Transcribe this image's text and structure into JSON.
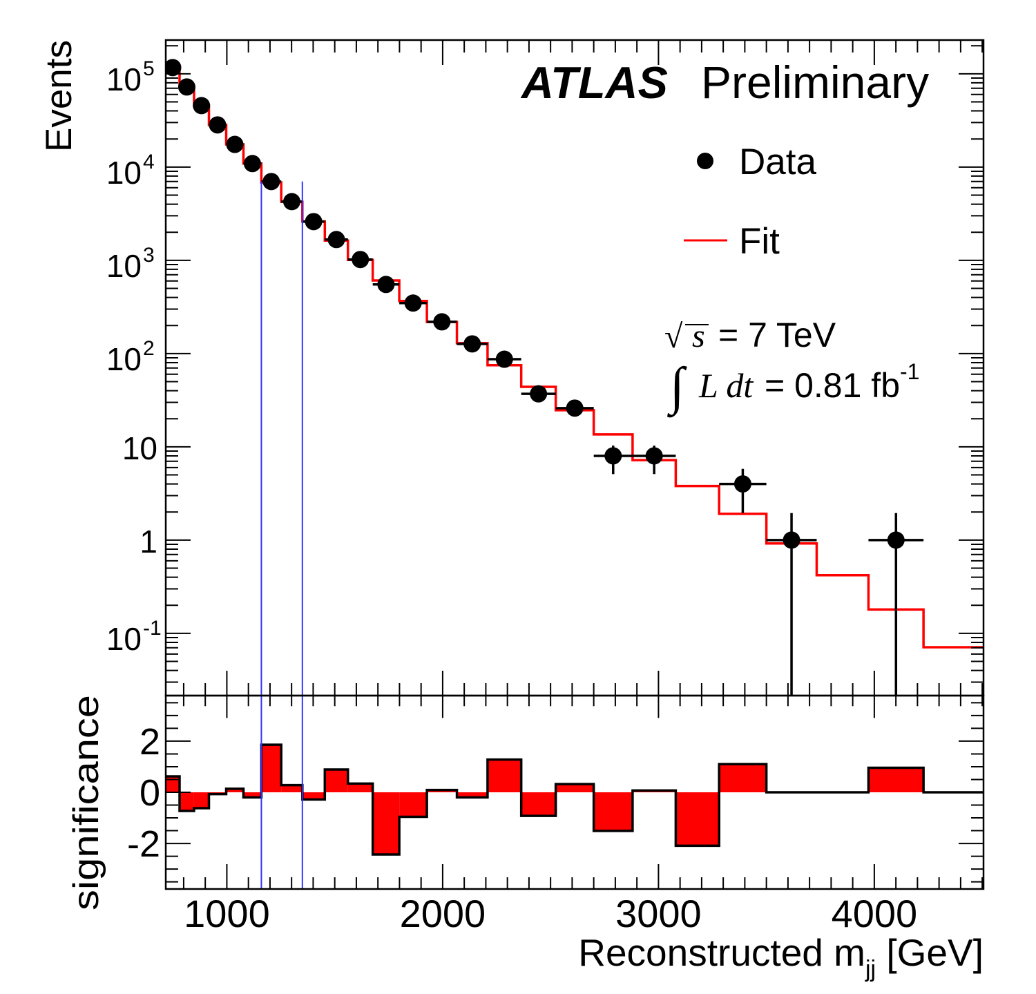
{
  "chart_data": {
    "type": "bar",
    "title": "ATLAS Preliminary",
    "experiment": "ATLAS",
    "status": "Preliminary",
    "xlabel": {
      "main": "Reconstructed m",
      "sub": "jj",
      "unit": " [GeV]"
    },
    "ylabel": "Events",
    "xlim": [
      717,
      4506
    ],
    "ylim": [
      0.0215,
      230000
    ],
    "yscale": "log",
    "grid": false,
    "legend_placement": "top-right",
    "legend": [
      {
        "label": "Data",
        "marker": "circle",
        "color": "#000000"
      },
      {
        "label": "Fit",
        "marker": "line",
        "color": "#ff0000"
      }
    ],
    "annotations": {
      "energy": {
        "sqrt": "√",
        "s": "s",
        "rest": "= 7 TeV"
      },
      "lumi": {
        "integral": "∫",
        "Ldt": "L dt",
        "value": "= 0.81 fb",
        "exp": "-1"
      }
    },
    "xticks": [
      {
        "value": 1000,
        "label": "1000"
      },
      {
        "value": 2000,
        "label": "2000"
      },
      {
        "value": 3000,
        "label": "3000"
      },
      {
        "value": 4000,
        "label": "4000"
      }
    ],
    "yticks": [
      {
        "value": 100000,
        "label": "10",
        "sup": "5"
      },
      {
        "value": 10000,
        "label": "10",
        "sup": "4"
      },
      {
        "value": 1000,
        "label": "10",
        "sup": "3"
      },
      {
        "value": 100,
        "label": "10",
        "sup": "2"
      },
      {
        "value": 10,
        "label": "10",
        "sup": ""
      },
      {
        "value": 1,
        "label": "1",
        "sup": ""
      },
      {
        "value": 0.1,
        "label": "10",
        "sup": "-1"
      }
    ],
    "bin_edges": [
      717,
      781,
      848,
      917,
      997,
      1077,
      1160,
      1252,
      1350,
      1454,
      1561,
      1676,
      1799,
      1927,
      2066,
      2208,
      2364,
      2524,
      2700,
      2880,
      3080,
      3281,
      3500,
      3733,
      3973,
      4228,
      4506
    ],
    "series": [
      {
        "name": "Data",
        "type": "points",
        "values": [
          116600,
          72200,
          45600,
          28300,
          17500,
          10900,
          6990,
          4260,
          2600,
          1670,
          1020,
          551,
          348,
          219,
          127,
          87,
          37,
          26,
          8,
          8,
          null,
          4,
          1,
          null,
          1,
          null
        ],
        "yerr_low": [
          null,
          null,
          null,
          null,
          null,
          null,
          null,
          null,
          null,
          null,
          null,
          null,
          null,
          null,
          null,
          null,
          null,
          null,
          5.1,
          5.1,
          null,
          1.95,
          0,
          null,
          0,
          null
        ],
        "yerr_high": [
          null,
          null,
          null,
          null,
          null,
          null,
          null,
          null,
          null,
          null,
          null,
          null,
          null,
          null,
          null,
          null,
          null,
          null,
          10.3,
          10.3,
          null,
          5.8,
          1.95,
          null,
          1.95,
          null
        ],
        "color": "#000000"
      },
      {
        "name": "Fit",
        "type": "step",
        "values": [
          116400,
          72400,
          45700,
          28300,
          17500,
          10900,
          6840,
          4240,
          2610,
          1630,
          1010,
          608,
          366,
          218,
          129,
          75,
          44,
          24.7,
          13.6,
          7.2,
          3.8,
          1.91,
          0.92,
          0.42,
          0.18,
          0.071
        ],
        "color": "#ff0000"
      }
    ],
    "signal_window": {
      "x": [
        1160,
        1350
      ],
      "top_events": 7000,
      "color": "#3333ff"
    },
    "lower": {
      "ylabel": "significance",
      "ylim": [
        -3.78,
        3.78
      ],
      "yticks": [
        {
          "value": 2,
          "label": "2"
        },
        {
          "value": 0,
          "label": "0"
        },
        {
          "value": -2,
          "label": "-2"
        }
      ],
      "values": [
        0.62,
        -0.73,
        -0.62,
        -0.07,
        0.14,
        -0.2,
        1.86,
        0.28,
        -0.28,
        0.89,
        0.34,
        -2.43,
        -0.96,
        0.09,
        -0.2,
        1.28,
        -0.92,
        0.32,
        -1.51,
        0.07,
        -2.09,
        1.1,
        0,
        0,
        0.96,
        0
      ],
      "fill_color": "#ff0000",
      "outline_color": "#000000"
    }
  }
}
